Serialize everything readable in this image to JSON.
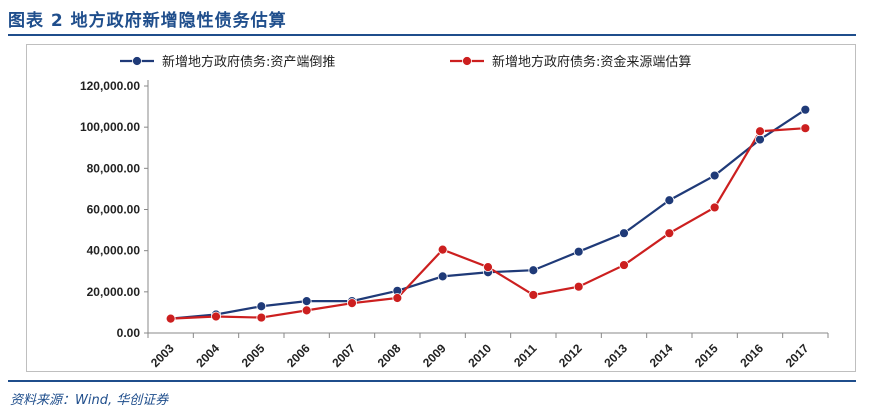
{
  "figure": {
    "title": "图表 2   地方政府新增隐性债务估算",
    "source": "资料来源：Wind, 华创证券"
  },
  "colors": {
    "series1": "#1f3a78",
    "series2": "#cc1f1f",
    "accent": "#1f4e8c"
  },
  "chart_data": {
    "type": "line",
    "x": [
      "2003",
      "2004",
      "2005",
      "2006",
      "2007",
      "2008",
      "2009",
      "2010",
      "2011",
      "2012",
      "2013",
      "2014",
      "2015",
      "2016",
      "2017"
    ],
    "series": [
      {
        "name": "新增地方政府债务:资产端倒推",
        "values": [
          7000,
          9000,
          13000,
          15500,
          15500,
          20500,
          27500,
          29500,
          30500,
          39500,
          48500,
          64500,
          76500,
          94000,
          108500
        ]
      },
      {
        "name": "新增地方政府债务:资金来源端估算",
        "values": [
          7000,
          8000,
          7500,
          11000,
          14500,
          17000,
          40500,
          32000,
          18500,
          22500,
          33000,
          48500,
          61000,
          98000,
          99500
        ]
      }
    ],
    "yticks": [
      "0.00",
      "20,000.00",
      "40,000.00",
      "60,000.00",
      "80,000.00",
      "100,000.00",
      "120,000.00"
    ],
    "ylim": [
      0,
      120000
    ],
    "grid": false,
    "legend_position": "top"
  }
}
